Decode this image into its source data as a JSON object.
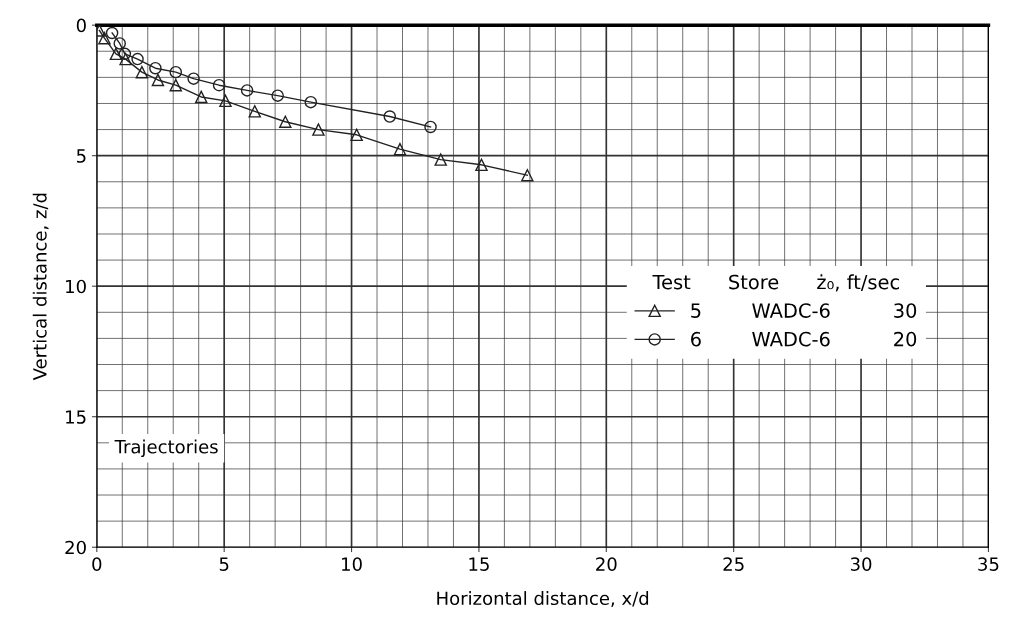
{
  "chart_data": {
    "type": "line",
    "xlabel": "Horizontal distance, x/d",
    "ylabel": "Vertical distance, z/d",
    "xlim": [
      0,
      35
    ],
    "xticks": [
      0,
      5,
      10,
      15,
      20,
      25,
      30,
      35
    ],
    "ylim": [
      20,
      0
    ],
    "yticks": [
      0,
      5,
      10,
      15,
      20
    ],
    "grid": true,
    "legend": "right",
    "legend_title": "Test      Store      ż₀, ft/sec",
    "annotations": [
      "Trajectories"
    ],
    "series": [
      {
        "name": "5        WADC-6          30",
        "color": "#222222",
        "marker": "triangle",
        "x": [
          0.1,
          0.3,
          0.75,
          1.13,
          1.77,
          2.4,
          3.1,
          4.1,
          5.05,
          6.2,
          7.4,
          8.7,
          10.2,
          11.9,
          13.5,
          15.1,
          16.9
        ],
        "values": [
          0.2,
          0.5,
          1.1,
          1.3,
          1.8,
          2.1,
          2.3,
          2.75,
          2.9,
          3.3,
          3.7,
          4.0,
          4.2,
          4.75,
          5.15,
          5.35,
          5.75
        ]
      },
      {
        "name": "6        WADC-6          20",
        "color": "#222222",
        "marker": "circle",
        "x": [
          0.6,
          0.9,
          1.1,
          1.6,
          2.3,
          3.1,
          3.8,
          4.8,
          5.9,
          7.1,
          8.4,
          11.5,
          13.1
        ],
        "values": [
          0.3,
          0.7,
          1.1,
          1.3,
          1.65,
          1.8,
          2.05,
          2.3,
          2.5,
          2.7,
          2.95,
          3.5,
          3.9
        ]
      }
    ]
  }
}
